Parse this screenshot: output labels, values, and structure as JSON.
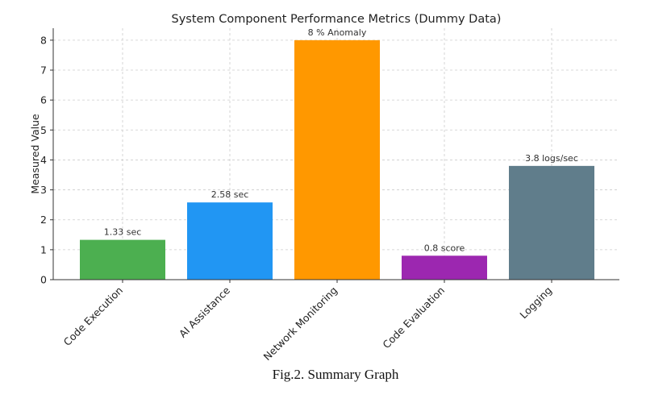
{
  "chart_data": {
    "type": "bar",
    "title": "System Component Performance Metrics (Dummy Data)",
    "xlabel": "",
    "ylabel": "Measured Value",
    "categories": [
      "Code Execution",
      "AI Assistance",
      "Network Monitoring",
      "Code Evaluation",
      "Logging"
    ],
    "values": [
      1.33,
      2.58,
      8,
      0.8,
      3.8
    ],
    "data_labels": [
      "1.33 sec",
      "2.58 sec",
      "8 % Anomaly",
      "0.8 score",
      "3.8 logs/sec"
    ],
    "colors": [
      "#4caf50",
      "#2196f3",
      "#ff9800",
      "#9c27b0",
      "#607d8b"
    ],
    "ylim": [
      0,
      8
    ],
    "yticks": [
      0,
      1,
      2,
      3,
      4,
      5,
      6,
      7,
      8
    ],
    "grid": true
  },
  "caption": "Fig.2. Summary Graph"
}
